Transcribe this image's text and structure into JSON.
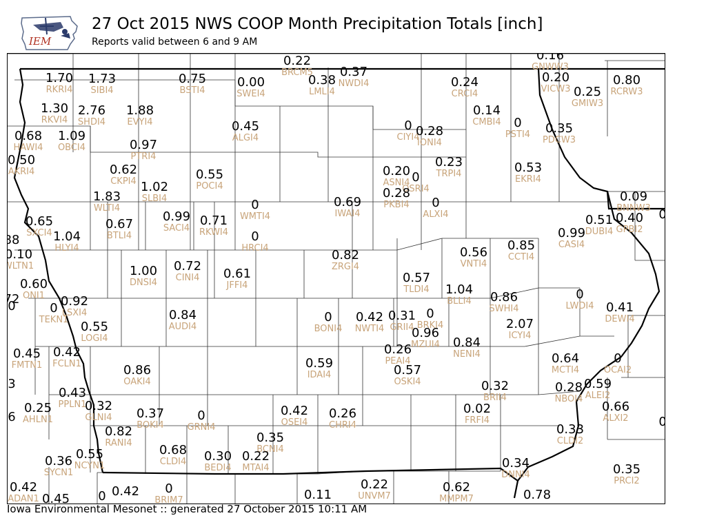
{
  "header": {
    "title": "27 Oct 2015 NWS COOP Month Precipitation Totals [inch]",
    "subtitle": "Reports valid between 6 and 9 AM",
    "logo_text": "IEM"
  },
  "footer": {
    "text": "Iowa Environmental Mesonet :: generated 27 October 2015 10:11 AM"
  },
  "colors": {
    "value": "#000000",
    "station_id": "#c8a47a",
    "logo_text": "#b03020",
    "logo_state": "#ffffff"
  },
  "stations": [
    {
      "id": "BRCM5",
      "value": "0.22"
    },
    {
      "id": "GNWW3",
      "value": "0.16"
    },
    {
      "id": "RKRI4",
      "value": "1.70"
    },
    {
      "id": "SIBI4",
      "value": "1.73"
    },
    {
      "id": "BSTI4",
      "value": "0.75"
    },
    {
      "id": "SWEI4",
      "value": "0.00"
    },
    {
      "id": "LMLI4",
      "value": "0.38"
    },
    {
      "id": "NWDI4",
      "value": "0.37"
    },
    {
      "id": "CRCI4",
      "value": "0.24"
    },
    {
      "id": "VICW3",
      "value": "0.20"
    },
    {
      "id": "GMIW3",
      "value": "0.25"
    },
    {
      "id": "RCRW3",
      "value": "0.80"
    },
    {
      "id": "RKVI4",
      "value": "1.30"
    },
    {
      "id": "SHDI4",
      "value": "2.76"
    },
    {
      "id": "EVYI4",
      "value": "1.88"
    },
    {
      "id": "CMBI4",
      "value": "0.14"
    },
    {
      "id": "HAWI4",
      "value": "0.68"
    },
    {
      "id": "OBCI4",
      "value": "1.09"
    },
    {
      "id": "ALGI4",
      "value": "0.45"
    },
    {
      "id": "CIYI4",
      "value": "0"
    },
    {
      "id": "IONI4",
      "value": "0.28"
    },
    {
      "id": "PSTI4",
      "value": "0"
    },
    {
      "id": "PDCW3",
      "value": "0.35"
    },
    {
      "id": "PTRI4",
      "value": "0.97"
    },
    {
      "id": "AKRI4",
      "value": "0.50"
    },
    {
      "id": "CKPI4",
      "value": "0.62"
    },
    {
      "id": "POCI4",
      "value": "0.55"
    },
    {
      "id": "ASNI4",
      "value": "0.20"
    },
    {
      "id": "OSRI4",
      "value": "0"
    },
    {
      "id": "TRPI4",
      "value": "0.23"
    },
    {
      "id": "EKRI4",
      "value": "0.53"
    },
    {
      "id": "SLBI4",
      "value": "1.02"
    },
    {
      "id": "WLTI4",
      "value": "1.83"
    },
    {
      "id": "PKBI4",
      "value": "0.28"
    },
    {
      "id": "BNNW3",
      "value": "0.09"
    },
    {
      "id": "IWAI4",
      "value": "0.69"
    },
    {
      "id": "ALXI4",
      "value": "0"
    },
    {
      "id": "WMTI4",
      "value": "0"
    },
    {
      "id": "SACI4",
      "value": "0.99"
    },
    {
      "id": "RKWI4",
      "value": "0.71"
    },
    {
      "id": "SXCI4",
      "value": "0.65"
    },
    {
      "id": "BTLI4",
      "value": "0.67"
    },
    {
      "id": "DUBI4",
      "value": "0.51"
    },
    {
      "id": "GPBI2",
      "value": "0.40"
    },
    {
      "id": "CASI4",
      "value": "0.99"
    },
    {
      "id": "HRCI4",
      "value": "0"
    },
    {
      "id": "HLYI4",
      "value": "1.04"
    },
    {
      "id": "CCTI4",
      "value": "0.85"
    },
    {
      "id": "VNTI4",
      "value": "0.56"
    },
    {
      "id": "ZRGI4",
      "value": "0.82"
    },
    {
      "id": "WLTN1",
      "value": "0.10"
    },
    {
      "id": "DNSI4",
      "value": "1.00"
    },
    {
      "id": "CINI4",
      "value": "0.72"
    },
    {
      "id": "JFFI4",
      "value": "0.61"
    },
    {
      "id": "TLDI4",
      "value": "0.57"
    },
    {
      "id": "ONI1",
      "value": "0.60"
    },
    {
      "id": "BLLI4",
      "value": "1.04"
    },
    {
      "id": "SWHI4",
      "value": "0.86"
    },
    {
      "id": "LWDI4",
      "value": "0"
    },
    {
      "id": "DEWI4",
      "value": "0.41"
    },
    {
      "id": "LSXI4",
      "value": "0.92"
    },
    {
      "id": "TEKN1",
      "value": "0"
    },
    {
      "id": "AUDI4",
      "value": "0.84"
    },
    {
      "id": "BONI4",
      "value": "0"
    },
    {
      "id": "NWTI4",
      "value": "0.42"
    },
    {
      "id": "GRII4",
      "value": "0.31"
    },
    {
      "id": "BRKI4",
      "value": "0"
    },
    {
      "id": "ICYI4",
      "value": "2.07"
    },
    {
      "id": "LOGI4",
      "value": "0.55"
    },
    {
      "id": "MZUI4",
      "value": "0.96"
    },
    {
      "id": "NENI4",
      "value": "0.84"
    },
    {
      "id": "FMTN1",
      "value": "0.45"
    },
    {
      "id": "FCLN1",
      "value": "0.42"
    },
    {
      "id": "PEAI4",
      "value": "0.26"
    },
    {
      "id": "IDAI4",
      "value": "0.59"
    },
    {
      "id": "MCTI4",
      "value": "0.64"
    },
    {
      "id": "OCAI2",
      "value": "0"
    },
    {
      "id": "OAKI4",
      "value": "0.86"
    },
    {
      "id": "OSKI4",
      "value": "0.57"
    },
    {
      "id": "ALEI2",
      "value": "0.59"
    },
    {
      "id": "NBOI4",
      "value": "0.28"
    },
    {
      "id": "BRII4",
      "value": "0.32"
    },
    {
      "id": "PPLN1",
      "value": "0.43"
    },
    {
      "id": "AHLN1",
      "value": "0.25"
    },
    {
      "id": "GLNI4",
      "value": "0.32"
    },
    {
      "id": "ALXI2",
      "value": "0.66"
    },
    {
      "id": "BOKI4",
      "value": "0.37"
    },
    {
      "id": "GRNI4",
      "value": "0"
    },
    {
      "id": "OSEI4",
      "value": "0.42"
    },
    {
      "id": "CHRI4",
      "value": "0.26"
    },
    {
      "id": "FRFI4",
      "value": "0.02"
    },
    {
      "id": "RANI4",
      "value": "0.82"
    },
    {
      "id": "CLDI2",
      "value": "0.33"
    },
    {
      "id": "BCNI4",
      "value": "0.35"
    },
    {
      "id": "CLDI4",
      "value": "0.68"
    },
    {
      "id": "BEDI4",
      "value": "0.30"
    },
    {
      "id": "MTAI4",
      "value": "0.22"
    },
    {
      "id": "SYCN1",
      "value": "0.36"
    },
    {
      "id": "NCYN1",
      "value": "0.55"
    },
    {
      "id": "DNNI4",
      "value": "0.34"
    },
    {
      "id": "PRCI2",
      "value": "0.35"
    },
    {
      "id": "UNVM7",
      "value": "0.22"
    },
    {
      "id": "MMPM7",
      "value": "0.62"
    },
    {
      "id": "ADAN1",
      "value": "0.42"
    },
    {
      "id": "BRIM7",
      "value": "0"
    },
    {
      "id": "",
      "value": "0.42"
    },
    {
      "id": "",
      "value": "0.45"
    },
    {
      "id": "",
      "value": "0"
    },
    {
      "id": "",
      "value": "0.11"
    },
    {
      "id": "",
      "value": "0.78"
    },
    {
      "id": "",
      "value": "88"
    },
    {
      "id": "",
      "value": "72"
    },
    {
      "id": "",
      "value": "0"
    },
    {
      "id": "",
      "value": "3"
    },
    {
      "id": "",
      "value": "6"
    },
    {
      "id": "",
      "value": "0."
    },
    {
      "id": "",
      "value": "0."
    }
  ]
}
